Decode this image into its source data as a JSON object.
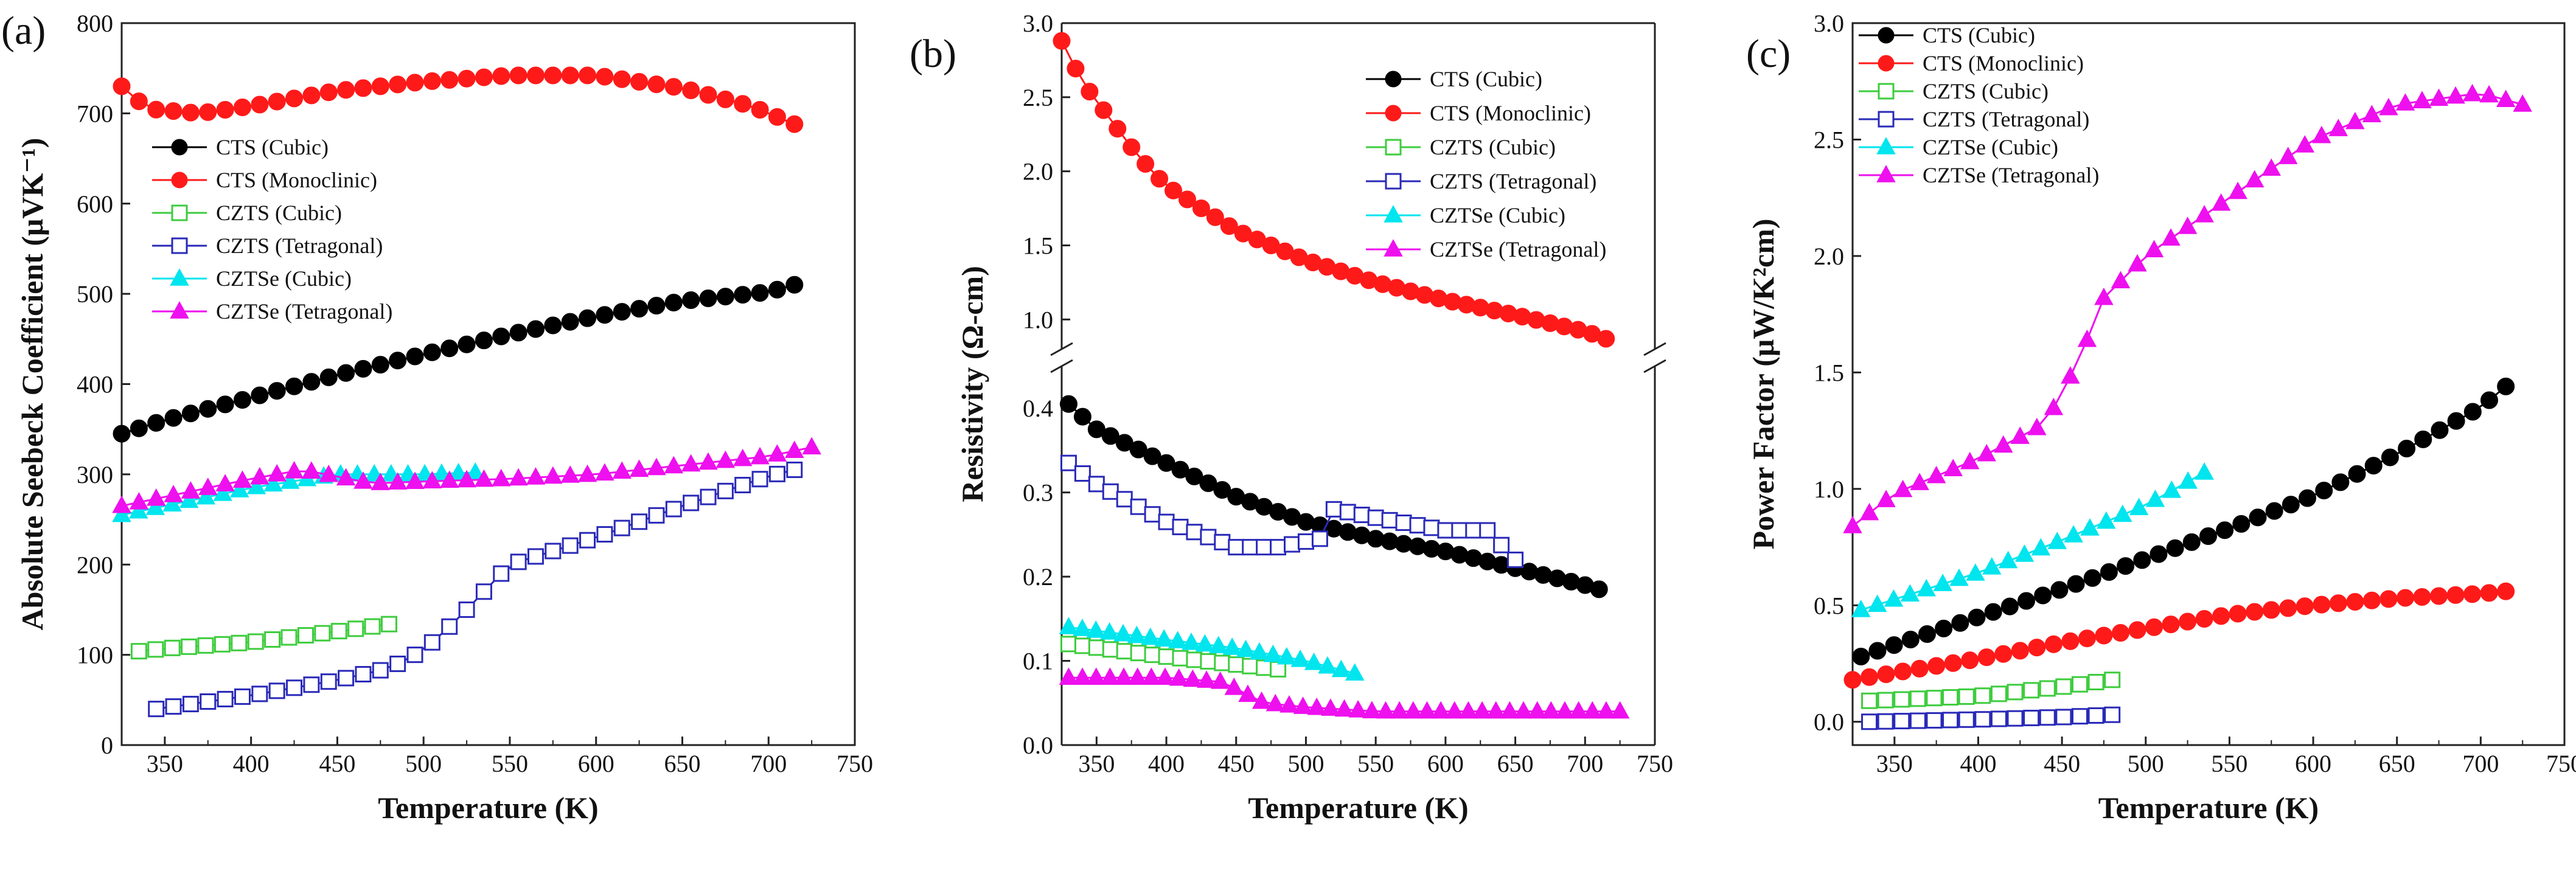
{
  "figure": {
    "background": "#ffffff",
    "axis_color": "#222222"
  },
  "series_styles": {
    "CTS (Cubic)": {
      "color": "#000000",
      "marker": "circle",
      "filled": true
    },
    "CTS (Monoclinic)": {
      "color": "#ff1a1a",
      "marker": "circle",
      "filled": true
    },
    "CZTS (Cubic)": {
      "color": "#3ecc3e",
      "marker": "square",
      "filled": false
    },
    "CZTS (Tetragonal)": {
      "color": "#2a2ab8",
      "marker": "square",
      "filled": false
    },
    "CZTSe (Cubic)": {
      "color": "#00e5ee",
      "marker": "triangle",
      "filled": true
    },
    "CZTSe (Tetragonal)": {
      "color": "#ee10ee",
      "marker": "triangle",
      "filled": true
    }
  },
  "chart_data": [
    {
      "type": "scatter",
      "panel_label": "(a)",
      "xlabel": "Temperature (K)",
      "ylabel": "Absolute Seebeck Coefficient (μVK⁻¹)",
      "xlim": [
        325,
        750
      ],
      "ylim": [
        0,
        800
      ],
      "xticks": [
        350,
        400,
        450,
        500,
        550,
        600,
        650,
        700,
        750
      ],
      "yticks": [
        0,
        100,
        200,
        300,
        400,
        500,
        600,
        700,
        800
      ],
      "legend": "center-left",
      "series": [
        {
          "name": "CTS (Cubic)",
          "x": [
            325,
            350,
            400,
            450,
            500,
            550,
            600,
            650,
            700,
            715
          ],
          "y": [
            345,
            360,
            385,
            410,
            433,
            455,
            475,
            492,
            502,
            510
          ]
        },
        {
          "name": "CTS (Monoclinic)",
          "x": [
            325,
            340,
            370,
            400,
            450,
            500,
            550,
            600,
            650,
            690,
            715
          ],
          "y": [
            730,
            705,
            700,
            708,
            725,
            735,
            742,
            742,
            728,
            708,
            688
          ]
        },
        {
          "name": "CZTS (Cubic)",
          "x": [
            335,
            350,
            400,
            450,
            480
          ],
          "y": [
            104,
            107,
            114,
            126,
            134
          ]
        },
        {
          "name": "CZTS (Tetragonal)",
          "x": [
            345,
            400,
            450,
            480,
            500,
            520,
            550,
            600,
            650,
            700,
            715
          ],
          "y": [
            40,
            55,
            72,
            85,
            105,
            140,
            200,
            230,
            265,
            298,
            305
          ]
        },
        {
          "name": "CZTSe (Cubic)",
          "x": [
            325,
            400,
            450,
            500,
            530
          ],
          "y": [
            255,
            285,
            300,
            300,
            302
          ]
        },
        {
          "name": "CZTSe (Tetragonal)",
          "x": [
            325,
            400,
            430,
            470,
            500,
            550,
            600,
            650,
            700,
            725
          ],
          "y": [
            265,
            295,
            305,
            290,
            292,
            295,
            300,
            310,
            320,
            330
          ]
        }
      ]
    },
    {
      "type": "scatter",
      "panel_label": "(b)",
      "xlabel": "Temperature (K)",
      "ylabel": "Resistivity (Ω-cm)",
      "xlim": [
        325,
        750
      ],
      "yaxis_break": true,
      "ylim_lower": [
        0,
        0.45
      ],
      "ylim_upper": [
        0.8,
        3.0
      ],
      "xticks": [
        350,
        400,
        450,
        500,
        550,
        600,
        650,
        700,
        750
      ],
      "yticks_lower": [
        0.0,
        0.1,
        0.2,
        0.3,
        0.4
      ],
      "yticks_upper": [
        1.0,
        1.5,
        2.0,
        2.5,
        3.0
      ],
      "legend": "top-right",
      "series": [
        {
          "name": "CTS (Cubic)",
          "x": [
            330,
            350,
            400,
            450,
            500,
            550,
            600,
            650,
            700,
            710
          ],
          "y": [
            0.405,
            0.375,
            0.335,
            0.295,
            0.265,
            0.245,
            0.23,
            0.21,
            0.19,
            0.185
          ]
        },
        {
          "name": "CTS (Monoclinic)",
          "x": [
            325,
            340,
            360,
            380,
            400,
            450,
            500,
            550,
            600,
            650,
            700,
            715
          ],
          "y": [
            2.88,
            2.6,
            2.35,
            2.1,
            1.9,
            1.6,
            1.4,
            1.25,
            1.13,
            1.03,
            0.92,
            0.87
          ]
        },
        {
          "name": "CZTS (Cubic)",
          "x": [
            330,
            400,
            480
          ],
          "y": [
            0.12,
            0.105,
            0.09
          ]
        },
        {
          "name": "CZTS (Tetragonal)",
          "x": [
            330,
            350,
            400,
            450,
            480,
            510,
            520,
            550,
            600,
            630,
            650
          ],
          "y": [
            0.335,
            0.31,
            0.265,
            0.235,
            0.235,
            0.245,
            0.28,
            0.27,
            0.255,
            0.255,
            0.22
          ]
        },
        {
          "name": "CZTSe (Cubic)",
          "x": [
            330,
            400,
            450,
            500,
            535
          ],
          "y": [
            0.14,
            0.125,
            0.115,
            0.1,
            0.085
          ]
        },
        {
          "name": "CZTSe (Tetragonal)",
          "x": [
            330,
            400,
            440,
            470,
            500,
            550,
            600,
            650,
            700,
            725
          ],
          "y": [
            0.08,
            0.08,
            0.075,
            0.05,
            0.045,
            0.04,
            0.04,
            0.04,
            0.04,
            0.04
          ]
        }
      ]
    },
    {
      "type": "scatter",
      "panel_label": "(c)",
      "xlabel": "Temperature (K)",
      "ylabel": "Power Factor (μW/K²cm)",
      "xlim": [
        325,
        750
      ],
      "ylim": [
        -0.1,
        3.0
      ],
      "xticks": [
        350,
        400,
        450,
        500,
        550,
        600,
        650,
        700,
        750
      ],
      "yticks": [
        0.0,
        0.5,
        1.0,
        1.5,
        2.0,
        2.5,
        3.0
      ],
      "legend": "top-left",
      "series": [
        {
          "name": "CTS (Cubic)",
          "x": [
            330,
            350,
            400,
            450,
            500,
            550,
            600,
            650,
            700,
            715
          ],
          "y": [
            0.28,
            0.33,
            0.45,
            0.57,
            0.7,
            0.83,
            0.97,
            1.15,
            1.35,
            1.44
          ]
        },
        {
          "name": "CTS (Monoclinic)",
          "x": [
            325,
            350,
            400,
            450,
            500,
            550,
            600,
            650,
            700,
            715
          ],
          "y": [
            0.18,
            0.21,
            0.27,
            0.34,
            0.4,
            0.46,
            0.5,
            0.53,
            0.55,
            0.56
          ]
        },
        {
          "name": "CZTS (Cubic)",
          "x": [
            335,
            400,
            450,
            480
          ],
          "y": [
            0.09,
            0.11,
            0.15,
            0.18
          ]
        },
        {
          "name": "CZTS (Tetragonal)",
          "x": [
            335,
            400,
            450,
            480
          ],
          "y": [
            0.0,
            0.01,
            0.02,
            0.03
          ]
        },
        {
          "name": "CZTSe (Cubic)",
          "x": [
            330,
            400,
            450,
            500,
            535
          ],
          "y": [
            0.48,
            0.64,
            0.78,
            0.93,
            1.07
          ]
        },
        {
          "name": "CZTSe (Tetragonal)",
          "x": [
            325,
            350,
            400,
            440,
            460,
            475,
            500,
            550,
            600,
            650,
            700,
            725
          ],
          "y": [
            0.84,
            0.98,
            1.13,
            1.28,
            1.55,
            1.82,
            2.0,
            2.25,
            2.5,
            2.65,
            2.7,
            2.65
          ]
        }
      ]
    }
  ]
}
